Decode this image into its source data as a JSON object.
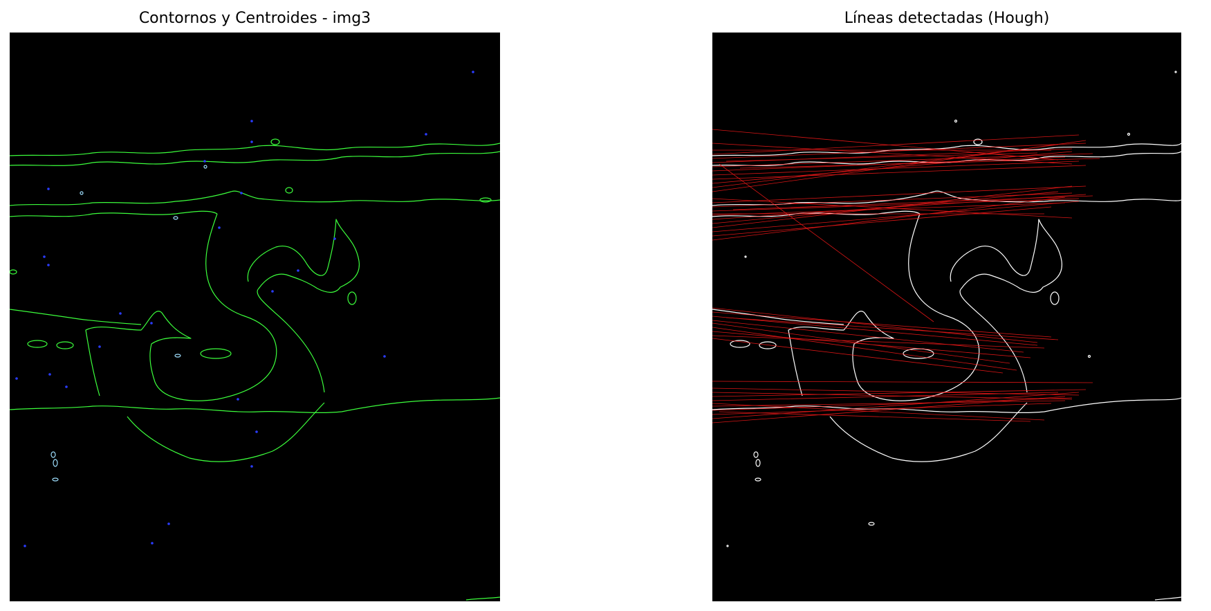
{
  "figure": {
    "background": "#ffffff",
    "panels": [
      {
        "id": "contours",
        "title": "Contornos y Centroides - img3",
        "image_background": "#000000",
        "contour_color": "#3cff3c",
        "centroid_color": "#2a3cff",
        "hole_color": "#9fe0ff"
      },
      {
        "id": "hough",
        "title": "Líneas detectadas (Hough)",
        "image_background": "#000000",
        "edge_color": "#ffffff",
        "line_color": "#ff1a1a"
      }
    ]
  }
}
